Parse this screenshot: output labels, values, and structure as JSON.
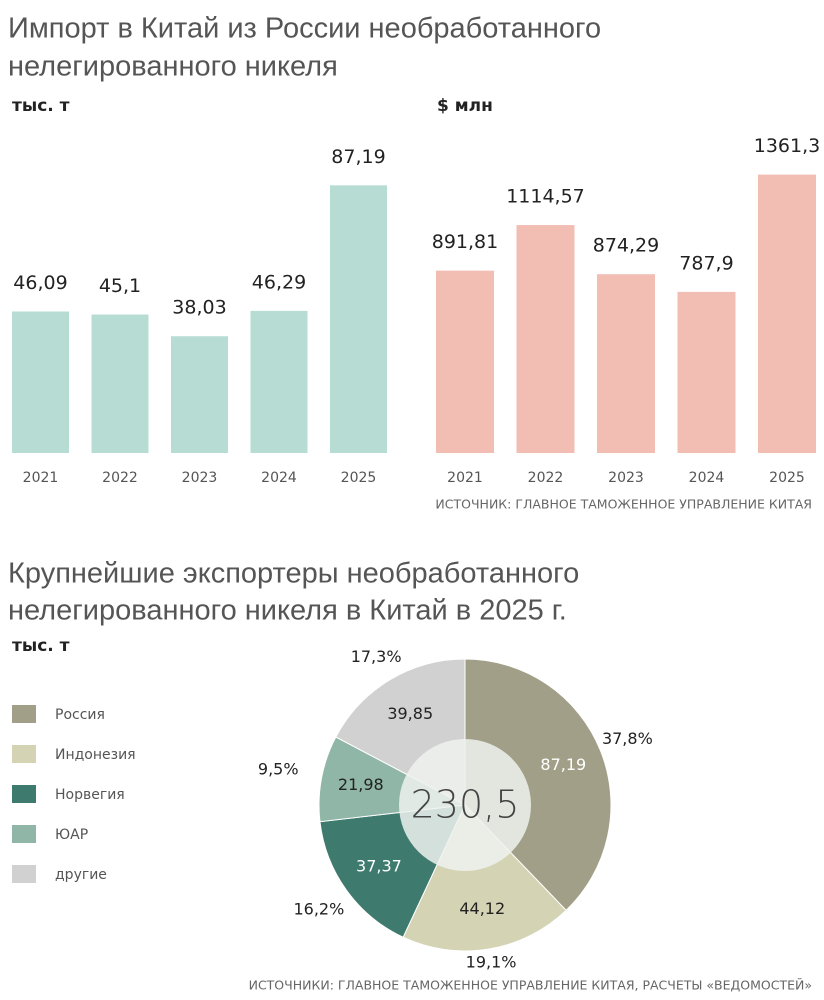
{
  "chart_data": [
    {
      "type": "bar",
      "title": [
        "Импорт в Китай из России необработанного",
        "нелегированного никеля"
      ],
      "unit": "тыс. т",
      "categories": [
        "2021",
        "2022",
        "2023",
        "2024",
        "2025"
      ],
      "values": [
        46.09,
        45.1,
        38.03,
        46.29,
        87.19
      ],
      "value_labels": [
        "46,09",
        "45,1",
        "38,03",
        "46,29",
        "87,19"
      ],
      "color": "#b6dcd3"
    },
    {
      "type": "bar",
      "unit": "$ млн",
      "categories": [
        "2021",
        "2022",
        "2023",
        "2024",
        "2025"
      ],
      "values": [
        891.81,
        1114.57,
        874.29,
        787.9,
        1361.3
      ],
      "value_labels": [
        "891,81",
        "1114,57",
        "874,29",
        "787,9",
        "1361,3"
      ],
      "color": "#f2bdb2",
      "source": "ИСТОЧНИК: ГЛАВНОЕ ТАМОЖЕННОЕ УПРАВЛЕНИЕ КИТАЯ"
    },
    {
      "type": "donut",
      "title": [
        "Крупнейшие экспортеры необработанного",
        "нелегированного никеля в Китай в 2025 г."
      ],
      "unit": "тыс. т",
      "categories": [
        "Россия",
        "Индонезия",
        "Норвегия",
        "ЮАР",
        "другие"
      ],
      "values": [
        87.19,
        44.12,
        37.37,
        21.98,
        39.85
      ],
      "value_labels": [
        "87,19",
        "44,12",
        "37,37",
        "21,98",
        "39,85"
      ],
      "shares": [
        37.8,
        19.1,
        16.2,
        9.5,
        17.3
      ],
      "share_labels": [
        "37,8%",
        "19,1%",
        "16,2%",
        "9,5%",
        "17,3%"
      ],
      "colors": [
        "#a19f88",
        "#d4d4b4",
        "#3f7a6f",
        "#90b6a7",
        "#d1d1d1"
      ],
      "total": 230.5,
      "total_label": "230,5",
      "source": "ИСТОЧНИКИ: ГЛАВНОЕ ТАМОЖЕННОЕ УПРАВЛЕНИЕ КИТАЯ, РАСЧЕТЫ «ВЕДОМОСТЕЙ»"
    }
  ]
}
